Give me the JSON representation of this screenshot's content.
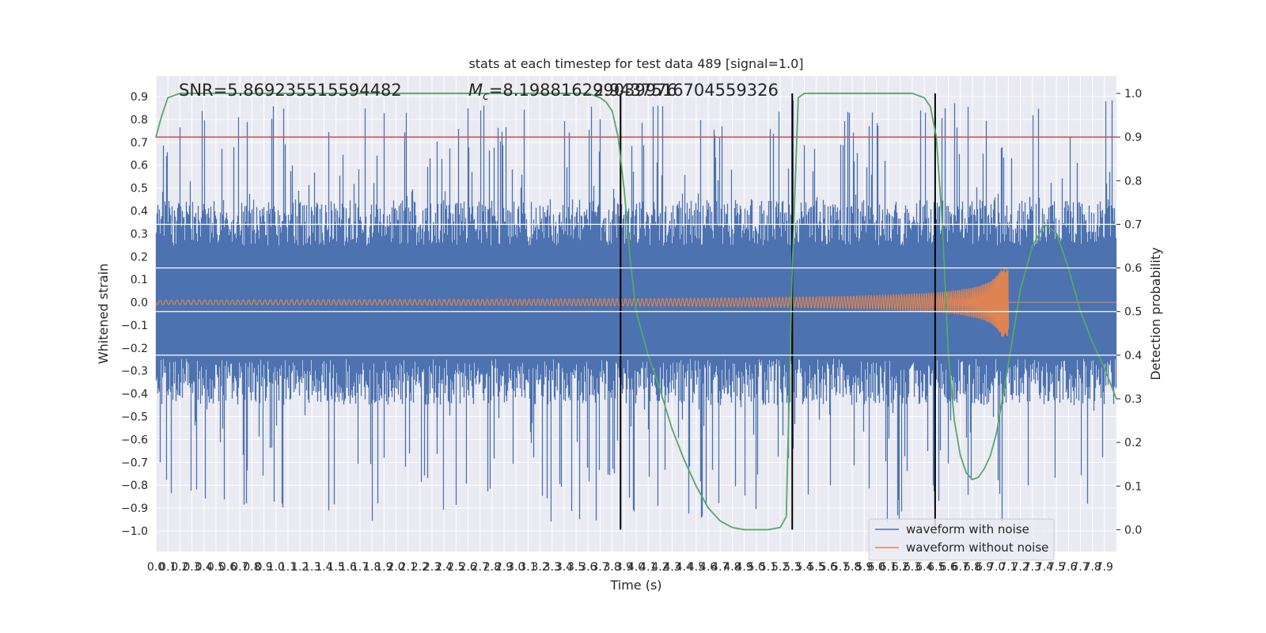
{
  "chart_data": {
    "type": "line",
    "title": "stats at each timestep for test data 489 [signal=1.0]",
    "xlabel": "Time (s)",
    "ylabel_left": "Whitened strain",
    "ylabel_right": "Detection probability",
    "annotations": {
      "snr": "SNR=5.869235515594482",
      "mc_label": "M",
      "mc_sub": "c",
      "mc_value": "=8.198816299039976",
      "mc_overlap": "2.9437516704559326"
    },
    "xlim": [
      0,
      8
    ],
    "ylim_left": [
      -1.09,
      0.99
    ],
    "ylim_right": [
      -0.05,
      1.04
    ],
    "x_ticks": [
      "0.0",
      "0.1",
      "0.2",
      "0.3",
      "0.4",
      "0.5",
      "0.6",
      "0.7",
      "0.8",
      "0.9",
      "1.0",
      "1.1",
      "1.2",
      "1.3",
      "1.4",
      "1.5",
      "1.6",
      "1.7",
      "1.8",
      "1.9",
      "2.0",
      "2.1",
      "2.2",
      "2.3",
      "2.4",
      "2.5",
      "2.6",
      "2.7",
      "2.8",
      "2.9",
      "3.0",
      "3.1",
      "3.2",
      "3.3",
      "3.4",
      "3.5",
      "3.6",
      "3.7",
      "3.8",
      "3.9",
      "4.0",
      "4.1",
      "4.2",
      "4.3",
      "4.4",
      "4.5",
      "4.6",
      "4.7",
      "4.8",
      "4.9",
      "5.0",
      "5.1",
      "5.2",
      "5.3",
      "5.4",
      "5.5",
      "5.6",
      "5.7",
      "5.8",
      "5.9",
      "6.0",
      "6.1",
      "6.2",
      "6.3",
      "6.4",
      "6.5",
      "6.6",
      "6.7",
      "6.8",
      "6.9",
      "7.0",
      "7.1",
      "7.2",
      "7.3",
      "7.4",
      "7.5",
      "7.6",
      "7.7",
      "7.8",
      "7.9"
    ],
    "y_ticks_left": [
      "0.9",
      "0.8",
      "0.7",
      "0.6",
      "0.5",
      "0.4",
      "0.3",
      "0.2",
      "0.1",
      "0.0",
      "−0.1",
      "−0.2",
      "−0.3",
      "−0.4",
      "−0.5",
      "−0.6",
      "−0.7",
      "−0.8",
      "−0.9",
      "−1.0"
    ],
    "y_ticks_right": [
      "1.0",
      "0.9",
      "0.8",
      "0.7",
      "0.6",
      "0.5",
      "0.4",
      "0.3",
      "0.2",
      "0.1",
      "0.0"
    ],
    "threshold": 0.9,
    "vlines": [
      3.87,
      5.3,
      6.49
    ],
    "series": [
      {
        "name": "waveform with noise",
        "color": "#4c72b0",
        "noise_envelope_typical": 0.45,
        "noise_envelope_max": 0.89
      },
      {
        "name": "waveform without noise",
        "color": "#dd8452",
        "chirp_start_amp": 0.01,
        "chirp_peak_amp": 0.15,
        "merger_time": 7.1
      },
      {
        "name": "",
        "color": "#55a868",
        "axis": "right",
        "x": [
          0.0,
          0.05,
          0.1,
          0.2,
          0.5,
          1.0,
          2.0,
          3.0,
          3.6,
          3.7,
          3.75,
          3.8,
          3.85,
          3.9,
          3.95,
          4.0,
          4.1,
          4.2,
          4.3,
          4.4,
          4.5,
          4.6,
          4.7,
          4.8,
          4.9,
          5.0,
          5.1,
          5.2,
          5.25,
          5.3,
          5.35,
          5.4,
          5.45,
          5.5,
          5.6,
          6.0,
          6.3,
          6.4,
          6.45,
          6.5,
          6.55,
          6.6,
          6.65,
          6.7,
          6.75,
          6.8,
          6.85,
          6.9,
          6.95,
          7.0,
          7.1,
          7.2,
          7.3,
          7.4,
          7.5,
          7.6,
          7.7,
          7.8,
          7.9,
          8.0
        ],
        "values": [
          0.9,
          0.95,
          0.99,
          1.0,
          1.0,
          1.0,
          1.0,
          1.0,
          1.0,
          0.99,
          0.98,
          0.96,
          0.9,
          0.78,
          0.62,
          0.5,
          0.4,
          0.32,
          0.23,
          0.16,
          0.1,
          0.05,
          0.02,
          0.005,
          0.0,
          0.0,
          0.0,
          0.005,
          0.03,
          0.6,
          0.99,
          1.0,
          1.0,
          1.0,
          1.0,
          1.0,
          1.0,
          0.99,
          0.97,
          0.9,
          0.7,
          0.4,
          0.25,
          0.17,
          0.13,
          0.115,
          0.12,
          0.14,
          0.17,
          0.22,
          0.38,
          0.55,
          0.65,
          0.7,
          0.68,
          0.6,
          0.5,
          0.43,
          0.37,
          0.3
        ]
      }
    ],
    "legend": {
      "placement": "lower-right",
      "entries": [
        "waveform with noise",
        "waveform without noise"
      ]
    },
    "threshold_color": "#c44e52",
    "grid": true
  }
}
